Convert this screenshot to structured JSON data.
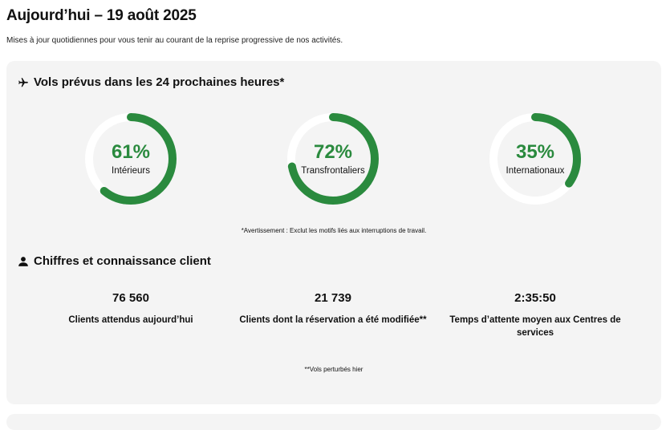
{
  "header": {
    "title": "Aujourd’hui – 19 août 2025",
    "subtitle": "Mises à jour quotidiennes pour vous tenir au courant de la reprise progressive de nos activités."
  },
  "flights": {
    "heading": "Vols prévus dans les 24 prochaines heures*",
    "icon": "airplane-icon",
    "gauges": [
      {
        "percent": 61,
        "percent_label": "61%",
        "label": "Intérieurs"
      },
      {
        "percent": 72,
        "percent_label": "72%",
        "label": "Transfrontaliers"
      },
      {
        "percent": 35,
        "percent_label": "35%",
        "label": "Internationaux"
      }
    ],
    "disclaimer": "*Avertissement : Exclut les motifs liés aux interruptions de travail."
  },
  "customers": {
    "heading": "Chiffres et connaissance client",
    "icon": "person-icon",
    "stats": [
      {
        "value": "76 560",
        "description": "Clients attendus aujourd’hui"
      },
      {
        "value": "21 739",
        "description": "Clients dont la réservation a été modifiée**"
      },
      {
        "value": "2:35:50",
        "description": "Temps d’attente moyen aux Centres de services"
      }
    ],
    "footnote": "**Vols perturbés hier"
  },
  "colors": {
    "accent": "#2a8a3e",
    "track": "#ffffff",
    "card": "#f4f4f4"
  }
}
